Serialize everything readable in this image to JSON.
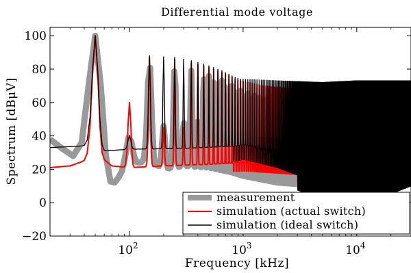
{
  "chart_data": {
    "type": "line",
    "title": "Differential mode voltage",
    "xlabel": "Frequency [kHz]",
    "ylabel": "Spectrum [dBμV]",
    "xscale": "log",
    "xlim": [
      20,
      30000
    ],
    "ylim": [
      -20,
      105
    ],
    "xticks": [
      {
        "value": 100,
        "base": "10",
        "exp": "2"
      },
      {
        "value": 1000,
        "base": "10",
        "exp": "3"
      },
      {
        "value": 10000,
        "base": "10",
        "exp": "4"
      }
    ],
    "yticks": [
      -20,
      0,
      20,
      40,
      60,
      80,
      100
    ],
    "ytick_labels": [
      "−20",
      "0",
      "20",
      "40",
      "60",
      "80",
      "100"
    ],
    "legend_position": "bottom-right",
    "fundamental_kHz": 50,
    "series": [
      {
        "name": "measurement",
        "color": "#999999",
        "floor": [
          [
            20,
            38
          ],
          [
            25,
            33
          ],
          [
            35,
            25
          ],
          [
            50,
            30
          ],
          [
            70,
            10
          ],
          [
            100,
            23
          ],
          [
            150,
            25
          ],
          [
            200,
            20
          ],
          [
            300,
            22
          ],
          [
            500,
            21
          ],
          [
            800,
            18
          ],
          [
            1000,
            16
          ],
          [
            2000,
            12
          ],
          [
            5000,
            10
          ],
          [
            10000,
            12
          ],
          [
            20000,
            15
          ],
          [
            30000,
            15
          ]
        ],
        "peaks": [
          [
            50,
            100
          ],
          [
            100,
            40
          ],
          [
            150,
            84
          ],
          [
            200,
            46
          ],
          [
            250,
            82
          ],
          [
            300,
            49
          ],
          [
            350,
            79
          ],
          [
            400,
            50
          ],
          [
            450,
            77
          ],
          [
            550,
            75
          ],
          [
            650,
            73
          ],
          [
            750,
            71
          ],
          [
            850,
            69
          ],
          [
            950,
            67
          ],
          [
            1500,
            62
          ],
          [
            3000,
            58
          ],
          [
            8000,
            55
          ],
          [
            15000,
            53
          ],
          [
            30000,
            50
          ]
        ]
      },
      {
        "name": "simulation (actual switch)",
        "color": "#ff0000",
        "floor": [
          [
            20,
            21
          ],
          [
            30,
            22
          ],
          [
            40,
            25
          ],
          [
            50,
            30
          ],
          [
            70,
            22
          ],
          [
            100,
            21
          ],
          [
            200,
            22
          ],
          [
            500,
            23
          ],
          [
            1000,
            24
          ],
          [
            3000,
            22
          ],
          [
            10000,
            20
          ],
          [
            30000,
            20
          ]
        ],
        "peaks": [
          [
            50,
            100
          ],
          [
            100,
            60
          ],
          [
            150,
            87
          ],
          [
            200,
            45
          ],
          [
            250,
            86
          ],
          [
            300,
            45
          ],
          [
            350,
            84
          ],
          [
            450,
            82
          ],
          [
            550,
            80
          ],
          [
            650,
            78
          ],
          [
            750,
            76
          ],
          [
            850,
            74
          ],
          [
            950,
            73
          ],
          [
            1500,
            70
          ],
          [
            3000,
            68
          ],
          [
            10000,
            63
          ],
          [
            30000,
            60
          ]
        ]
      },
      {
        "name": "simulation (ideal switch)",
        "color": "#000000",
        "floor": [
          [
            20,
            33
          ],
          [
            40,
            34
          ],
          [
            48,
            36
          ],
          [
            60,
            31
          ],
          [
            100,
            32
          ],
          [
            300,
            32.5
          ],
          [
            900,
            34
          ],
          [
            1000,
            35
          ],
          [
            2000,
            30
          ],
          [
            5000,
            20
          ],
          [
            8000,
            10
          ],
          [
            15000,
            20
          ],
          [
            30000,
            28
          ]
        ],
        "peaks": [
          [
            50,
            100
          ],
          [
            100,
            40
          ],
          [
            150,
            88
          ],
          [
            250,
            87
          ],
          [
            350,
            85
          ],
          [
            450,
            83
          ],
          [
            550,
            81
          ],
          [
            650,
            79
          ],
          [
            750,
            77
          ],
          [
            850,
            75
          ],
          [
            950,
            74
          ],
          [
            2000,
            73
          ],
          [
            5000,
            72
          ],
          [
            10000,
            73
          ],
          [
            30000,
            73
          ]
        ]
      }
    ]
  }
}
